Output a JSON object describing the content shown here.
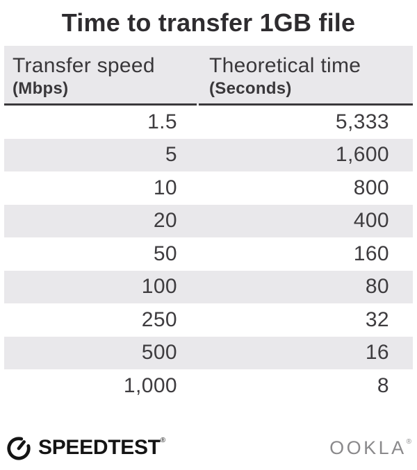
{
  "title": "Time to transfer 1GB file",
  "colors": {
    "background": "#ffffff",
    "stripe": "#e9e8eb",
    "header_underline": "#3a383b",
    "title_text": "#2e2c2f",
    "body_text": "#3e3c3f",
    "speedtest_black": "#141414",
    "ookla_gray": "#8a898b"
  },
  "table": {
    "columns": [
      {
        "label": "Transfer speed",
        "unit": "(Mbps)"
      },
      {
        "label": "Theoretical time",
        "unit": "(Seconds)"
      }
    ],
    "rows": [
      {
        "speed": "1.5",
        "time": "5,333"
      },
      {
        "speed": "5",
        "time": "1,600"
      },
      {
        "speed": "10",
        "time": "800"
      },
      {
        "speed": "20",
        "time": "400"
      },
      {
        "speed": "50",
        "time": "160"
      },
      {
        "speed": "100",
        "time": "80"
      },
      {
        "speed": "250",
        "time": "32"
      },
      {
        "speed": "500",
        "time": "16"
      },
      {
        "speed": "1,000",
        "time": "8"
      }
    ]
  },
  "chart_data": {
    "type": "table",
    "title": "Time to transfer 1GB file",
    "columns": [
      "Transfer speed (Mbps)",
      "Theoretical time (Seconds)"
    ],
    "rows": [
      [
        1.5,
        5333
      ],
      [
        5,
        1600
      ],
      [
        10,
        800
      ],
      [
        20,
        400
      ],
      [
        50,
        160
      ],
      [
        100,
        80
      ],
      [
        250,
        32
      ],
      [
        500,
        16
      ],
      [
        1000,
        8
      ]
    ]
  },
  "footer": {
    "speedtest_label": "SPEEDTEST",
    "speedtest_reg": "®",
    "ookla_label": "OOKLA",
    "ookla_reg": "®",
    "gauge_icon": "speedtest-gauge-icon"
  }
}
